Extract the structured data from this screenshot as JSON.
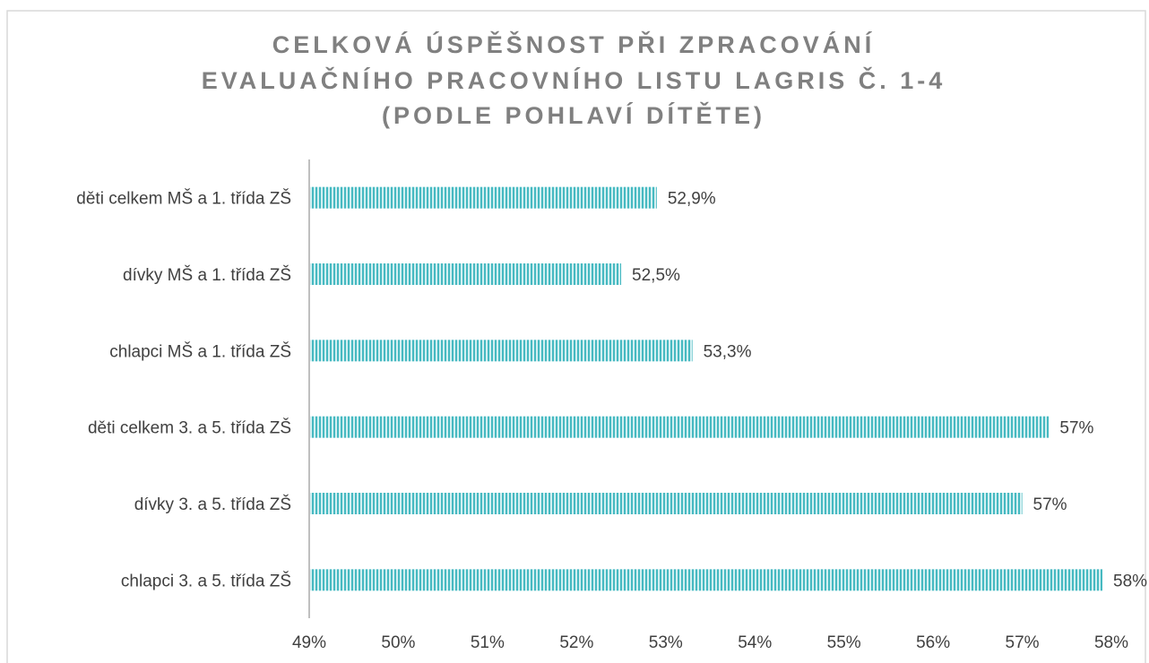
{
  "chart_data": {
    "type": "hbar",
    "title": [
      "CELKOVÁ ÚSPĚŠNOST PŘI ZPRACOVÁNÍ",
      "EVALUAČNÍHO PRACOVNÍHO LISTU LAGRIS Č. 1-4",
      "(PODLE POHLAVÍ DÍTĚTE)"
    ],
    "categories": [
      "děti celkem MŠ a 1. třída ZŠ",
      "dívky MŠ a 1. třída ZŠ",
      "chlapci MŠ a 1. třída ZŠ",
      "děti celkem 3. a 5. třída ZŠ",
      "dívky 3. a 5. třída ZŠ",
      "chlapci 3. a 5. třída ZŠ"
    ],
    "values": [
      52.9,
      52.5,
      53.3,
      57.3,
      57.0,
      57.9
    ],
    "value_labels": [
      "52,9%",
      "52,5%",
      "53,3%",
      "57%",
      "57%",
      "58%"
    ],
    "color": "#46b9c1",
    "xlim": [
      49,
      58
    ],
    "xticks": [
      {
        "value": 49,
        "label": "49%"
      },
      {
        "value": 50,
        "label": "50%"
      },
      {
        "value": 51,
        "label": "51%"
      },
      {
        "value": 52,
        "label": "52%"
      },
      {
        "value": 53,
        "label": "53%"
      },
      {
        "value": 54,
        "label": "54%"
      },
      {
        "value": 55,
        "label": "55%"
      },
      {
        "value": 56,
        "label": "56%"
      },
      {
        "value": 57,
        "label": "57%"
      },
      {
        "value": 58,
        "label": "58%"
      }
    ],
    "grid": false
  }
}
